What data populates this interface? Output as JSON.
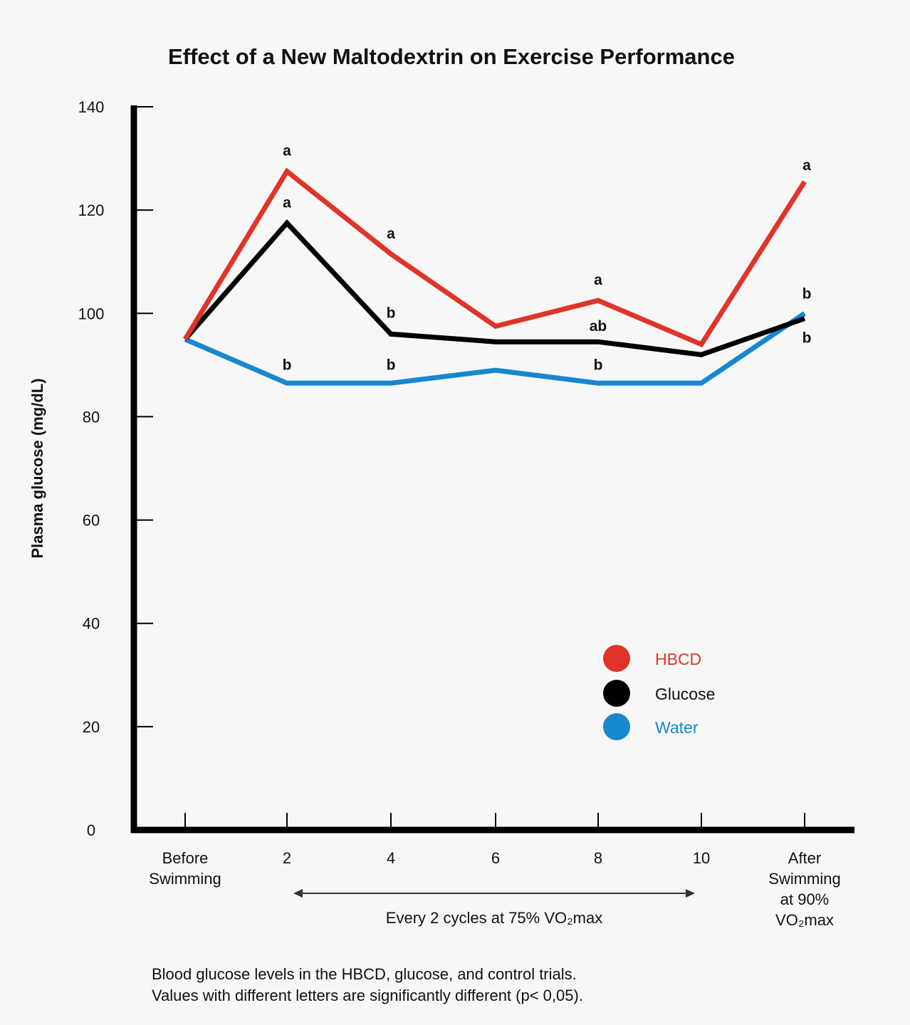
{
  "chart_data": {
    "type": "line",
    "title": "Effect of a New Maltodextrin on Exercise Performance",
    "ylabel": "Plasma glucose (mg/dL)",
    "ylim": [
      0,
      140
    ],
    "yticks": [
      0,
      20,
      40,
      60,
      80,
      100,
      120,
      140
    ],
    "categories": [
      [
        "Before",
        "Swimming"
      ],
      [
        "2"
      ],
      [
        "4"
      ],
      [
        "6"
      ],
      [
        "8"
      ],
      [
        "10"
      ],
      [
        "After",
        "Swimming",
        "at 90%",
        "VO₂max"
      ]
    ],
    "series": [
      {
        "name": "HBCD",
        "color": "#e0342a",
        "values": [
          95,
          127.5,
          111.5,
          97.5,
          102.5,
          94,
          125.5
        ],
        "letters": [
          "",
          "a",
          "a",
          "",
          "a",
          "",
          "a"
        ]
      },
      {
        "name": "Glucose",
        "color": "#000000",
        "values": [
          95,
          117.5,
          96,
          94.5,
          94.5,
          92,
          99
        ],
        "letters": [
          "",
          "a",
          "b",
          "",
          "ab",
          "",
          "b"
        ]
      },
      {
        "name": "Water",
        "color": "#1787cf",
        "values": [
          95,
          86.5,
          86.5,
          89,
          86.5,
          86.5,
          100
        ],
        "letters": [
          "",
          "b",
          "b",
          "",
          "b",
          "",
          "b"
        ]
      }
    ],
    "range_annotation": "Every 2 cycles at 75% VO₂max",
    "legend_position": "lower-right",
    "grid": false
  },
  "caption": [
    "Blood glucose levels in the HBCD, glucose, and control trials.",
    "Values with different letters are significantly different (p< 0,05)."
  ]
}
